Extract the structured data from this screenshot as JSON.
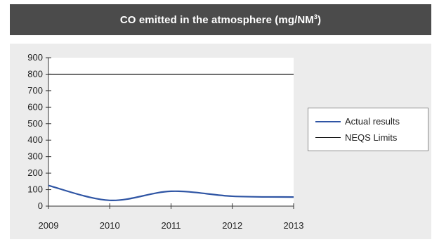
{
  "title": {
    "main": "CO emitted in the atmosphere (mg/NM",
    "superscript": "3",
    "close": ")"
  },
  "colors": {
    "title_bar": "#4b4b4b",
    "plot_background": "#ececec",
    "actual_series": "#2f55a4",
    "limit_series": "#111111"
  },
  "chart_data": {
    "type": "line",
    "title": "CO emitted in the atmosphere (mg/NM³)",
    "xlabel": "",
    "ylabel": "",
    "x": [
      "2009",
      "2010",
      "2011",
      "2012",
      "2013"
    ],
    "ylim": [
      0,
      900
    ],
    "yticks": [
      "0",
      "100",
      "200",
      "300",
      "400",
      "500",
      "600",
      "700",
      "800",
      "900"
    ],
    "grid": false,
    "legend_position": "right",
    "series": [
      {
        "name": "Actual results",
        "values": [
          125,
          35,
          90,
          60,
          55
        ],
        "smooth": true,
        "color": "#2f55a4"
      },
      {
        "name": "NEQS Limits",
        "values": [
          800,
          800,
          800,
          800,
          800
        ],
        "smooth": false,
        "color": "#111111"
      }
    ]
  }
}
